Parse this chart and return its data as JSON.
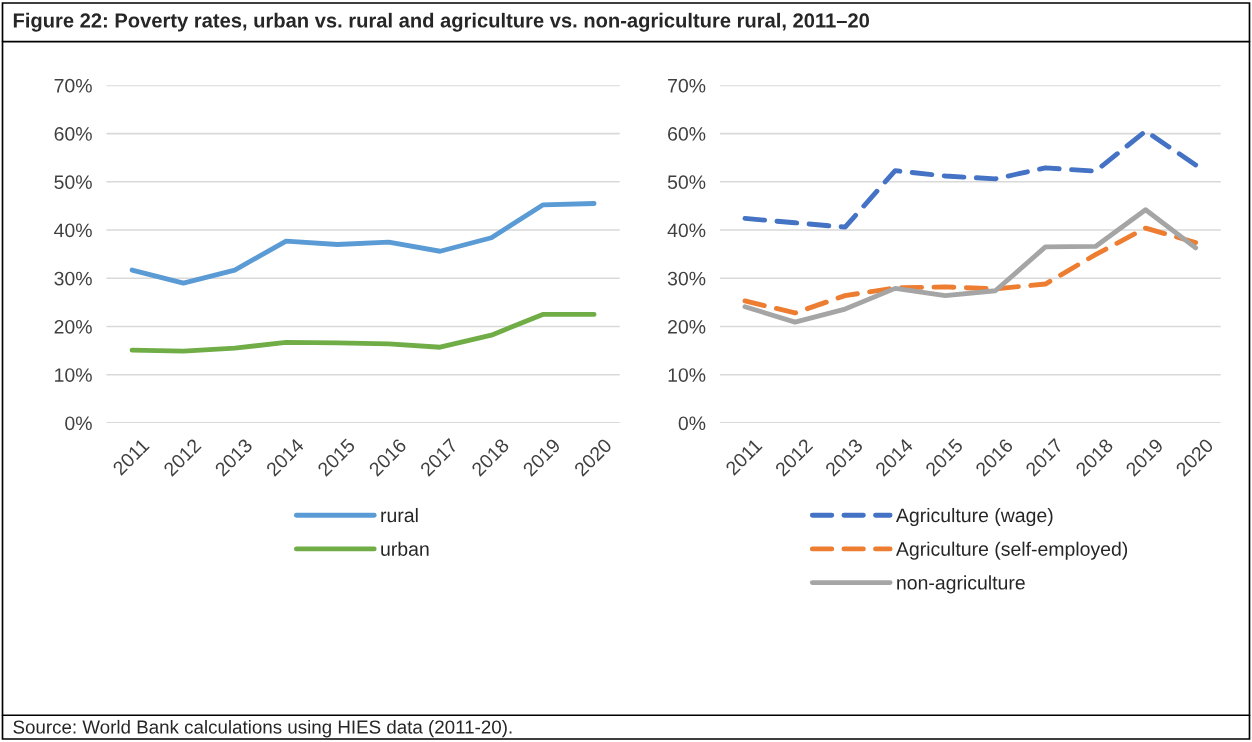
{
  "chart_data": [
    {
      "type": "line",
      "title": "Figure 22: Poverty rates, urban vs. rural and agriculture vs. non-agriculture rural, 2011–20",
      "categories": [
        "2011",
        "2012",
        "2013",
        "2014",
        "2015",
        "2016",
        "2017",
        "2018",
        "2019",
        "2020"
      ],
      "series": [
        {
          "name": "rural",
          "color": "#5b9bd5",
          "line_style": "solid",
          "values": [
            31.7,
            29.0,
            31.7,
            37.7,
            37.0,
            37.5,
            35.6,
            38.4,
            45.2,
            45.5
          ]
        },
        {
          "name": "urban",
          "color": "#70ad47",
          "line_style": "solid",
          "values": [
            15.1,
            14.9,
            15.5,
            16.7,
            16.6,
            16.4,
            15.7,
            18.2,
            22.5,
            22.5
          ]
        }
      ],
      "ylim": [
        0,
        70
      ],
      "yticks": [
        {
          "value": 0,
          "label": "0%"
        },
        {
          "value": 10,
          "label": "10%"
        },
        {
          "value": 20,
          "label": "20%"
        },
        {
          "value": 30,
          "label": "30%"
        },
        {
          "value": 40,
          "label": "40%"
        },
        {
          "value": 50,
          "label": "50%"
        },
        {
          "value": 60,
          "label": "60%"
        },
        {
          "value": 70,
          "label": "70%"
        }
      ],
      "grid": "y",
      "legend": "bottom",
      "marker": "none"
    },
    {
      "type": "line",
      "categories": [
        "2011",
        "2012",
        "2013",
        "2014",
        "2015",
        "2016",
        "2017",
        "2018",
        "2019",
        "2020"
      ],
      "series": [
        {
          "name": "Agriculture (wage)",
          "color": "#4472c4",
          "line_style": "dashed",
          "values": [
            42.4,
            41.5,
            40.6,
            52.3,
            51.2,
            50.6,
            52.9,
            52.2,
            60.5,
            53.5
          ]
        },
        {
          "name": "Agriculture (self-employed)",
          "color": "#ed7d31",
          "line_style": "dashed",
          "values": [
            25.3,
            22.8,
            26.4,
            28.0,
            28.2,
            27.8,
            28.8,
            34.9,
            40.4,
            37.4
          ]
        },
        {
          "name": "non-agriculture",
          "color": "#a5a5a5",
          "line_style": "solid",
          "values": [
            24.1,
            20.9,
            23.6,
            27.9,
            26.4,
            27.4,
            36.5,
            36.6,
            44.2,
            36.3
          ]
        }
      ],
      "ylim": [
        0,
        70
      ],
      "yticks": [
        {
          "value": 0,
          "label": "0%"
        },
        {
          "value": 10,
          "label": "10%"
        },
        {
          "value": 20,
          "label": "20%"
        },
        {
          "value": 30,
          "label": "30%"
        },
        {
          "value": 40,
          "label": "40%"
        },
        {
          "value": 50,
          "label": "50%"
        },
        {
          "value": 60,
          "label": "60%"
        },
        {
          "value": 70,
          "label": "70%"
        }
      ],
      "grid": "y",
      "legend": "bottom",
      "marker": "none",
      "annotations": [
        "Source: World Bank calculations using HIES data (2011-20)."
      ]
    }
  ]
}
